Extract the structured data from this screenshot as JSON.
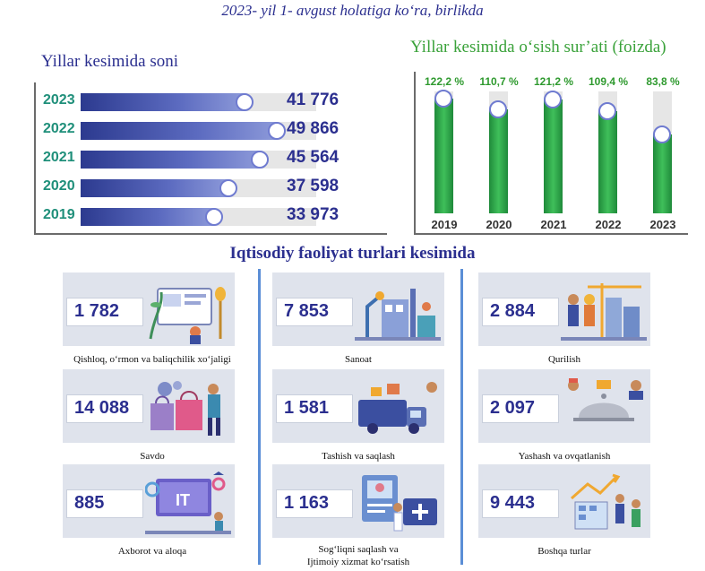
{
  "header": {
    "title": "2023- yil 1- avgust holatiga ko‘ra, birlikda"
  },
  "chart_data": [
    {
      "type": "bar",
      "orientation": "horizontal",
      "title": "Yillar kesimida soni",
      "categories": [
        "2023",
        "2022",
        "2021",
        "2020",
        "2019"
      ],
      "values": [
        41776,
        49866,
        45564,
        37598,
        33973
      ],
      "value_labels": [
        "41 776",
        "49 866",
        "45 564",
        "37 598",
        "33 973"
      ],
      "xlim": [
        0,
        60000
      ],
      "colors": {
        "bar": "#3a4aa8",
        "track": "#e6e6e6",
        "year": "#1f8f7a"
      }
    },
    {
      "type": "bar",
      "orientation": "vertical",
      "title": "Yillar kesimida o‘sish sur’ati (foizda)",
      "categories": [
        "2019",
        "2020",
        "2021",
        "2022",
        "2023"
      ],
      "values": [
        122.2,
        110.7,
        121.2,
        109.4,
        83.8
      ],
      "value_labels": [
        "122,2 %",
        "110,7 %",
        "121,2 %",
        "109,4 %",
        "83,8 %"
      ],
      "ylim": [
        0,
        130
      ],
      "colors": {
        "bar": "#2fa84a",
        "track": "#e6e6e6"
      }
    }
  ],
  "sectors": {
    "title": "Iqtisodiy faoliyat turlari kesimida",
    "items": [
      {
        "value": "1 782",
        "label": "Qishloq, o‘rmon va baliqchilik xo‘jaligi",
        "icon": "agriculture-icon"
      },
      {
        "value": "7 853",
        "label": "Sanoat",
        "icon": "industry-icon"
      },
      {
        "value": "2 884",
        "label": "Qurilish",
        "icon": "construction-icon"
      },
      {
        "value": "14 088",
        "label": "Savdo",
        "icon": "shopping-icon"
      },
      {
        "value": "1 581",
        "label": "Tashish va saqlash",
        "icon": "transport-icon"
      },
      {
        "value": "2 097",
        "label": "Yashash va ovqatlanish",
        "icon": "hospitality-icon"
      },
      {
        "value": "885",
        "label": "Axborot va aloqa",
        "icon": "it-icon"
      },
      {
        "value": "1 163",
        "label": "Sog‘liqni saqlash va",
        "label2": "Ijtimoiy xizmat ko‘rsatish",
        "icon": "healthcare-icon"
      },
      {
        "value": "9 443",
        "label": "Boshqa turlar",
        "icon": "other-icon"
      }
    ]
  }
}
